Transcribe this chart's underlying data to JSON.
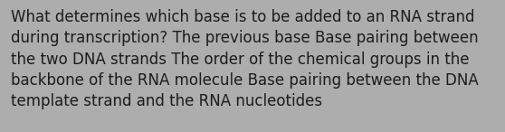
{
  "lines": [
    "What determines which base is to be added to an RNA strand",
    "during transcription? The previous base Base pairing between",
    "the two DNA strands The order of the chemical groups in the",
    "backbone of the RNA molecule Base pairing between the DNA",
    "template strand and the RNA nucleotides"
  ],
  "background_color": "#adadad",
  "text_color": "#1c1c1c",
  "font_size": 12.0,
  "font_family": "DejaVu Sans",
  "fig_width": 5.58,
  "fig_height": 1.46,
  "dpi": 100
}
